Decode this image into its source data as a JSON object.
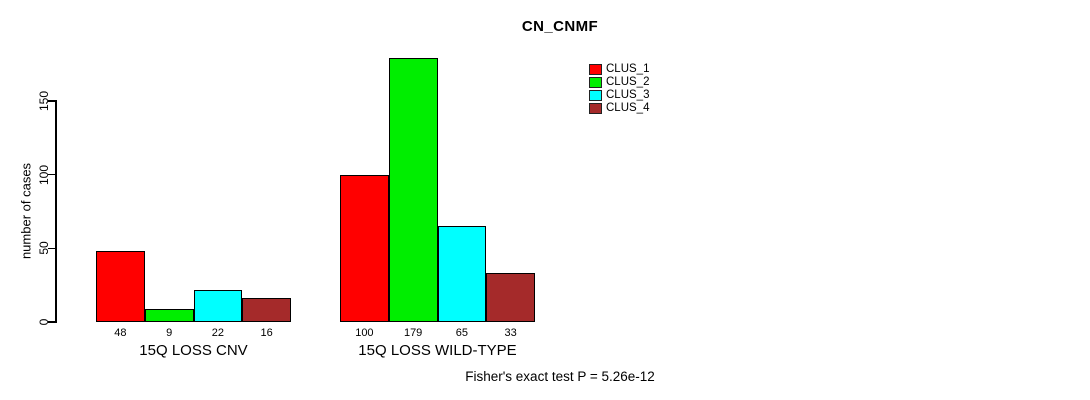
{
  "chart_data": {
    "type": "bar",
    "title": "CN_CNMF",
    "ylabel": "number of cases",
    "yticks": [
      0,
      50,
      100,
      150
    ],
    "ylim": [
      0,
      185
    ],
    "grid": false,
    "categories": [
      "15Q LOSS CNV",
      "15Q LOSS WILD-TYPE"
    ],
    "series": [
      {
        "name": "CLUS_1",
        "color": "#FF0000",
        "values": [
          48,
          100
        ]
      },
      {
        "name": "CLUS_2",
        "color": "#00EE00",
        "values": [
          9,
          179
        ]
      },
      {
        "name": "CLUS_3",
        "color": "#00FFFF",
        "values": [
          22,
          65
        ]
      },
      {
        "name": "CLUS_4",
        "color": "#A52A2A",
        "values": [
          16,
          33
        ]
      }
    ],
    "bar_value_labels": [
      [
        "48",
        "9",
        "22",
        "16"
      ],
      [
        "100",
        "179",
        "65",
        "33"
      ]
    ],
    "legend_position": "inside-top-right-of-title",
    "annotation": "Fisher's exact test P = 5.26e-12"
  }
}
